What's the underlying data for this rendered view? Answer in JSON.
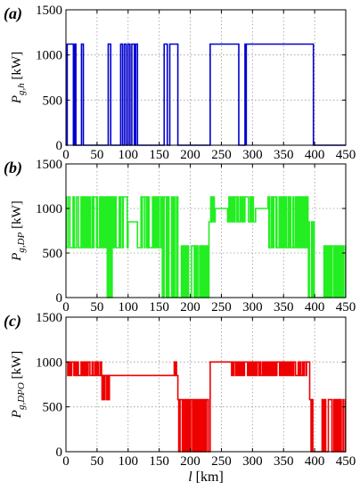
{
  "chart_data": [
    {
      "type": "line",
      "panel_label": "(a)",
      "ylabel": {
        "symbol": "P",
        "subscript": "g,h",
        "unit": " [kW]"
      },
      "xlim": [
        0,
        450
      ],
      "ylim": [
        0,
        1500
      ],
      "xticks": [
        "0",
        "50",
        "100",
        "150",
        "200",
        "250",
        "300",
        "350",
        "400",
        "450"
      ],
      "yticks": [
        "0",
        "500",
        "1000",
        "1500"
      ],
      "grid": true,
      "color": "#0000cc",
      "on_level": 1120,
      "on_intervals": [
        [
          2,
          12
        ],
        [
          14,
          16
        ],
        [
          25,
          28
        ],
        [
          68,
          72
        ],
        [
          88,
          91
        ],
        [
          94,
          97
        ],
        [
          100,
          103
        ],
        [
          106,
          110
        ],
        [
          112,
          115
        ],
        [
          158,
          163
        ],
        [
          167,
          180
        ],
        [
          232,
          278
        ],
        [
          288,
          290
        ],
        [
          290,
          398
        ]
      ]
    },
    {
      "type": "line",
      "panel_label": "(b)",
      "ylabel": {
        "symbol": "P",
        "subscript": "g,DP",
        "unit": " [kW]"
      },
      "xlim": [
        0,
        450
      ],
      "ylim": [
        0,
        1500
      ],
      "xticks": [
        "0",
        "50",
        "100",
        "150",
        "200",
        "250",
        "300",
        "350",
        "400",
        "450"
      ],
      "yticks": [
        "0",
        "500",
        "1000",
        "1500"
      ],
      "grid": true,
      "color": "#22ee22",
      "segments": [
        {
          "x": [
            0,
            65
          ],
          "low": 560,
          "high": 1130
        },
        {
          "x": [
            65,
            75
          ],
          "low": 0,
          "high": 1130
        },
        {
          "x": [
            75,
            100
          ],
          "low": 560,
          "high": 1130
        },
        {
          "x": [
            100,
            115
          ],
          "low": 850,
          "high": 850
        },
        {
          "x": [
            115,
            155
          ],
          "low": 560,
          "high": 1130
        },
        {
          "x": [
            155,
            180
          ],
          "low": 0,
          "high": 1130
        },
        {
          "x": [
            180,
            230
          ],
          "low": 0,
          "high": 580
        },
        {
          "x": [
            230,
            240
          ],
          "low": 850,
          "high": 1130
        },
        {
          "x": [
            240,
            260
          ],
          "low": 1000,
          "high": 1000
        },
        {
          "x": [
            260,
            305
          ],
          "low": 850,
          "high": 1130
        },
        {
          "x": [
            305,
            325
          ],
          "low": 1000,
          "high": 1000
        },
        {
          "x": [
            325,
            390
          ],
          "low": 560,
          "high": 1130
        },
        {
          "x": [
            390,
            400
          ],
          "low": 0,
          "high": 850
        },
        {
          "x": [
            400,
            415
          ],
          "low": 0,
          "high": 0
        },
        {
          "x": [
            415,
            450
          ],
          "low": 0,
          "high": 580
        }
      ]
    },
    {
      "type": "line",
      "panel_label": "(c)",
      "ylabel": {
        "symbol": "P",
        "subscript": "g,DPO",
        "unit": " [kW]"
      },
      "xlabel": {
        "symbol": "l",
        "unit": " [km]"
      },
      "xlim": [
        0,
        450
      ],
      "ylim": [
        0,
        1500
      ],
      "xticks": [
        "0",
        "50",
        "100",
        "150",
        "200",
        "250",
        "300",
        "350",
        "400",
        "450"
      ],
      "yticks": [
        "0",
        "500",
        "1000",
        "1500"
      ],
      "grid": true,
      "color": "#ee0000",
      "segments": [
        {
          "x": [
            0,
            40
          ],
          "low": 850,
          "high": 1000
        },
        {
          "x": [
            40,
            58
          ],
          "low": 850,
          "high": 1000
        },
        {
          "x": [
            58,
            72
          ],
          "low": 580,
          "high": 850
        },
        {
          "x": [
            72,
            172
          ],
          "low": 850,
          "high": 850
        },
        {
          "x": [
            172,
            180
          ],
          "low": 850,
          "high": 1000
        },
        {
          "x": [
            180,
            232
          ],
          "low": 0,
          "high": 580
        },
        {
          "x": [
            232,
            265
          ],
          "low": 1000,
          "high": 1000
        },
        {
          "x": [
            265,
            280
          ],
          "low": 850,
          "high": 1000
        },
        {
          "x": [
            280,
            350
          ],
          "low": 850,
          "high": 1000
        },
        {
          "x": [
            350,
            392
          ],
          "low": 850,
          "high": 1000
        },
        {
          "x": [
            392,
            400
          ],
          "low": 0,
          "high": 580
        },
        {
          "x": [
            400,
            412
          ],
          "low": 0,
          "high": 0
        },
        {
          "x": [
            412,
            450
          ],
          "low": 0,
          "high": 580
        }
      ]
    }
  ]
}
